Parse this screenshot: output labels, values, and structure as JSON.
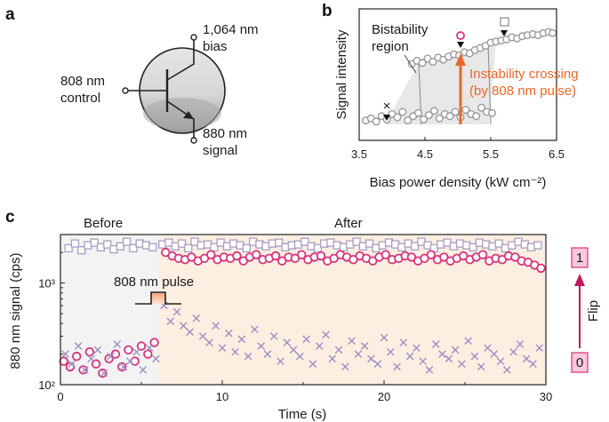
{
  "panels": {
    "a": "a",
    "b": "b",
    "c": "c"
  },
  "diagram_a": {
    "bias_label_1": "1,064 nm",
    "bias_label_2": "bias",
    "control_label_1": "808 nm",
    "control_label_2": "control",
    "signal_label_1": "880 nm",
    "signal_label_2": "signal"
  },
  "chart_data": [
    {
      "type": "scatter",
      "panel": "b",
      "xlabel": "Bias power density (kW cm⁻²)",
      "ylabel": "Signal intensity",
      "xlim": [
        3.5,
        6.5
      ],
      "xticks": [
        "3.5",
        "4.5",
        "5.5",
        "6.5"
      ],
      "annotations": {
        "region": [
          "Bistability",
          "region"
        ],
        "crossing": [
          "Instability crossing",
          "(by 808 nm pulse)"
        ],
        "markers": [
          "×",
          "○",
          "□"
        ]
      },
      "series": [
        {
          "x": [
            3.6,
            3.68,
            3.76,
            3.84,
            3.92,
            4.0,
            4.08,
            4.16,
            4.24,
            4.32,
            4.4,
            4.48,
            4.56,
            4.64,
            4.72,
            4.8,
            4.88,
            4.96,
            5.04,
            5.12,
            5.2,
            5.28,
            5.36,
            5.44,
            5.52
          ],
          "y": [
            0.12,
            0.14,
            0.11,
            0.16,
            0.13,
            0.18,
            0.15,
            0.2,
            0.12,
            0.16,
            0.19,
            0.13,
            0.17,
            0.21,
            0.14,
            0.18,
            0.16,
            0.2,
            0.15,
            0.22,
            0.18,
            0.16,
            0.24,
            0.2,
            0.19
          ]
        },
        {
          "x": [
            4.3,
            4.38,
            4.46,
            4.54,
            4.62,
            4.7,
            4.78,
            4.86,
            4.94,
            5.02,
            5.1,
            5.18,
            5.26,
            5.34,
            5.42,
            5.5,
            5.58,
            5.66,
            5.74,
            5.82,
            5.9,
            5.98,
            6.06,
            6.14,
            6.22,
            6.3,
            6.38,
            6.44
          ],
          "y": [
            0.65,
            0.68,
            0.66,
            0.7,
            0.67,
            0.71,
            0.69,
            0.72,
            0.74,
            0.73,
            0.76,
            0.75,
            0.78,
            0.8,
            0.82,
            0.85,
            0.86,
            0.87,
            0.88,
            0.9,
            0.89,
            0.91,
            0.92,
            0.93,
            0.92,
            0.94,
            0.95,
            0.94
          ]
        }
      ]
    },
    {
      "type": "scatter",
      "panel": "c",
      "xlabel": "Time (s)",
      "ylabel": "880 nm signal (cps)",
      "ylog": true,
      "xlim": [
        0,
        30
      ],
      "ylim": [
        100,
        3000
      ],
      "xticks": [
        "0",
        "10",
        "20",
        "30"
      ],
      "yticks": [
        "10²",
        "10³"
      ],
      "switch_time": 6,
      "annotations": {
        "before": "Before",
        "after": "After",
        "pulse": "808 nm pulse",
        "flip": "Flip",
        "state_high": "1",
        "state_low": "0"
      },
      "series": [
        {
          "marker": "square",
          "x": [
            0.5,
            0.9,
            1.3,
            1.7,
            2.1,
            2.5,
            2.9,
            3.3,
            3.7,
            4.1,
            4.5,
            4.9,
            5.3,
            5.7,
            6.3,
            6.7,
            7.1,
            7.5,
            7.9,
            8.3,
            8.7,
            9.1,
            9.5,
            9.9,
            10.3,
            10.7,
            11.1,
            11.5,
            11.9,
            12.3,
            12.7,
            13.1,
            13.5,
            13.9,
            14.3,
            14.7,
            15.1,
            15.5,
            15.9,
            16.3,
            16.7,
            17.1,
            17.5,
            17.9,
            18.3,
            18.7,
            19.1,
            19.5,
            19.9,
            20.3,
            20.7,
            21.1,
            21.5,
            21.9,
            22.3,
            22.7,
            23.1,
            23.5,
            23.9,
            24.3,
            24.7,
            25.1,
            25.5,
            25.9,
            26.3,
            26.7,
            27.1,
            27.5,
            27.9,
            28.3,
            28.7,
            29.1,
            29.5
          ],
          "y": [
            2200,
            2450,
            2100,
            2350,
            2500,
            2250,
            2400,
            2150,
            2300,
            2550,
            2200,
            2450,
            2350,
            2250,
            2400,
            2500,
            2300,
            2450,
            2200,
            2550,
            2350,
            2400,
            2250,
            2500,
            2300,
            2450,
            2350,
            2200,
            2550,
            2400,
            2300,
            2450,
            2500,
            2250,
            2350,
            2400,
            2550,
            2300,
            2200,
            2450,
            2500,
            2350,
            2250,
            2400,
            2550,
            2300,
            2450,
            2200,
            2350,
            2500,
            2400,
            2250,
            2450,
            2300,
            2550,
            2350,
            2200,
            2400,
            2500,
            2300,
            2450,
            2350,
            2250,
            2500,
            2400,
            2300,
            2450,
            2200,
            2350,
            2550,
            2400,
            2250,
            2350
          ]
        },
        {
          "marker": "circle",
          "x": [
            0.2,
            0.6,
            1.0,
            1.4,
            1.8,
            2.2,
            2.6,
            3.0,
            3.4,
            3.8,
            4.2,
            4.6,
            5.0,
            5.4,
            5.8,
            6.5,
            6.9,
            7.3,
            7.7,
            8.1,
            8.5,
            8.9,
            9.3,
            9.7,
            10.1,
            10.5,
            10.9,
            11.3,
            11.7,
            12.1,
            12.5,
            12.9,
            13.3,
            13.7,
            14.1,
            14.5,
            14.9,
            15.3,
            15.7,
            16.1,
            16.5,
            16.9,
            17.3,
            17.7,
            18.1,
            18.5,
            18.9,
            19.3,
            19.7,
            20.1,
            20.5,
            20.9,
            21.3,
            21.7,
            22.1,
            22.5,
            22.9,
            23.3,
            23.7,
            24.1,
            24.5,
            24.9,
            25.3,
            25.7,
            26.1,
            26.5,
            26.9,
            27.3,
            27.7,
            28.1,
            28.5,
            28.9,
            29.3,
            29.7
          ],
          "y": [
            170,
            150,
            190,
            140,
            210,
            160,
            130,
            180,
            200,
            150,
            220,
            170,
            240,
            200,
            260,
            2000,
            1850,
            1750,
            1700,
            1800,
            1650,
            1750,
            1900,
            1700,
            1800,
            1750,
            1850,
            1650,
            1800,
            1900,
            1700,
            1750,
            1850,
            1650,
            1800,
            1750,
            1900,
            1700,
            1800,
            1850,
            1650,
            1750,
            1900,
            1800,
            1700,
            1850,
            1750,
            1650,
            1800,
            1900,
            1700,
            1750,
            1850,
            1800,
            1650,
            1750,
            1900,
            1700,
            1800,
            1650,
            1750,
            1850,
            1700,
            1800,
            1900,
            1650,
            1750,
            1700,
            1850,
            1800,
            1650,
            1600,
            1500,
            1400
          ]
        },
        {
          "marker": "x",
          "x": [
            0.3,
            0.7,
            1.1,
            1.5,
            1.9,
            2.3,
            2.7,
            3.1,
            3.5,
            3.9,
            4.3,
            4.7,
            5.1,
            5.5,
            5.9,
            6.4,
            6.8,
            7.2,
            7.6,
            8.0,
            8.4,
            8.8,
            9.2,
            9.6,
            10.0,
            10.4,
            10.8,
            11.2,
            11.6,
            12.0,
            12.4,
            12.8,
            13.2,
            13.6,
            14.0,
            14.4,
            14.8,
            15.2,
            15.6,
            16.0,
            16.4,
            16.8,
            17.2,
            17.6,
            18.0,
            18.4,
            18.8,
            19.2,
            19.6,
            20.0,
            20.4,
            20.8,
            21.2,
            21.6,
            22.0,
            22.4,
            22.8,
            23.2,
            23.6,
            24.0,
            24.4,
            24.8,
            25.2,
            25.6,
            26.0,
            26.4,
            26.8,
            27.2,
            27.6,
            28.0,
            28.4,
            28.8,
            29.2,
            29.6
          ],
          "y": [
            200,
            160,
            240,
            140,
            180,
            220,
            130,
            190,
            250,
            150,
            170,
            210,
            140,
            230,
            180,
            600,
            420,
            520,
            380,
            330,
            450,
            300,
            260,
            380,
            230,
            320,
            210,
            280,
            190,
            350,
            240,
            200,
            300,
            170,
            260,
            220,
            190,
            280,
            160,
            240,
            310,
            180,
            220,
            150,
            270,
            200,
            240,
            180,
            160,
            290,
            210,
            150,
            260,
            190,
            230,
            170,
            140,
            250,
            200,
            180,
            220,
            160,
            270,
            190,
            150,
            230,
            200,
            170,
            140,
            210,
            250,
            180,
            160,
            230
          ]
        }
      ]
    }
  ]
}
